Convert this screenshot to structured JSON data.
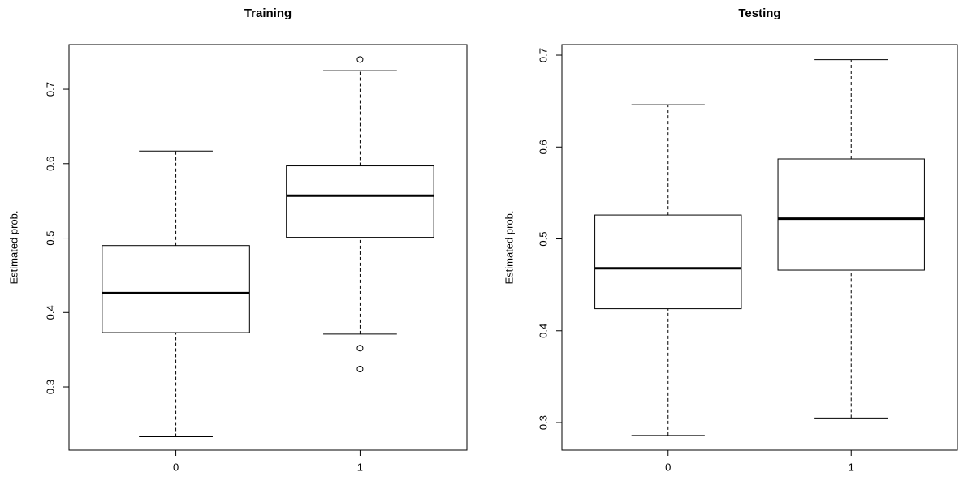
{
  "chart_data": [
    {
      "type": "box",
      "title": "Training",
      "ylabel": "Estimated prob.",
      "categories": [
        "0",
        "1"
      ],
      "boxes": [
        {
          "min": 0.233,
          "q1": 0.373,
          "median": 0.426,
          "q3": 0.49,
          "max": 0.617,
          "outliers": []
        },
        {
          "min": 0.371,
          "q1": 0.501,
          "median": 0.557,
          "q3": 0.597,
          "max": 0.725,
          "outliers": [
            0.74,
            0.352,
            0.324
          ]
        }
      ],
      "ylim": [
        0.215,
        0.76
      ],
      "yticks": [
        0.3,
        0.4,
        0.5,
        0.6,
        0.7
      ],
      "color": "#000000"
    },
    {
      "type": "box",
      "title": "Testing",
      "ylabel": "Estimated prob.",
      "categories": [
        "0",
        "1"
      ],
      "boxes": [
        {
          "min": 0.286,
          "q1": 0.424,
          "median": 0.468,
          "q3": 0.526,
          "max": 0.646,
          "outliers": []
        },
        {
          "min": 0.305,
          "q1": 0.466,
          "median": 0.522,
          "q3": 0.587,
          "max": 0.695,
          "outliers": []
        }
      ],
      "ylim": [
        0.27,
        0.7115
      ],
      "yticks": [
        0.3,
        0.4,
        0.5,
        0.6,
        0.7
      ],
      "color": "#000000"
    }
  ]
}
